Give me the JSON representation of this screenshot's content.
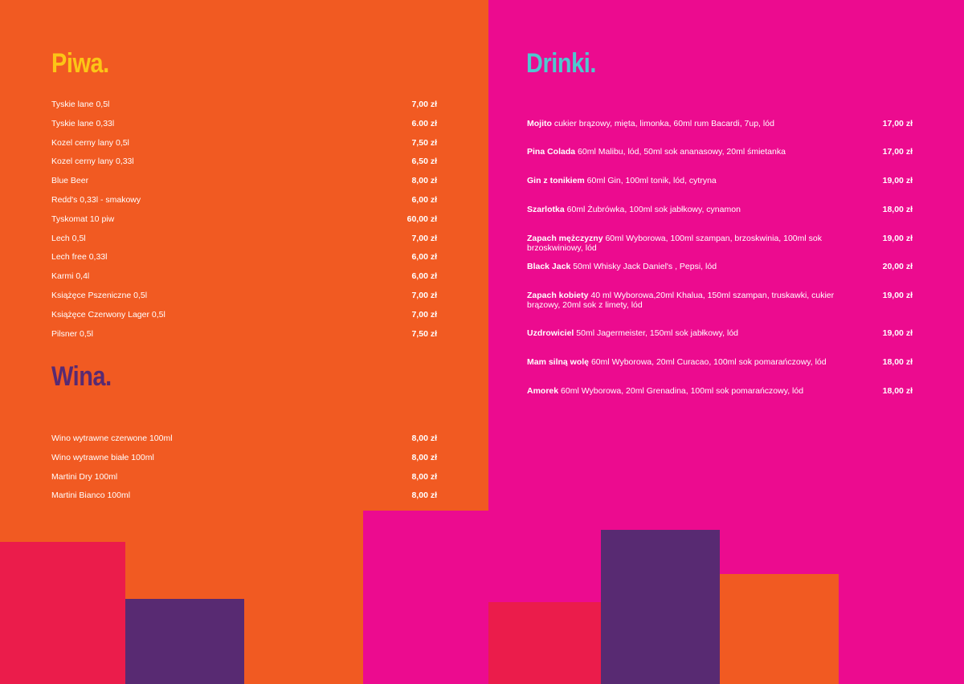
{
  "colors": {
    "orange": "#f15a22",
    "pink": "#ec0b8f",
    "red": "#eb1c4b",
    "purple": "#582a72",
    "yellow": "#fcc516",
    "cyan": "#4fc8cf"
  },
  "beers": {
    "title": "Piwa.",
    "items": [
      {
        "name": "Tyskie lane 0,5l",
        "price": "7,00 zł"
      },
      {
        "name": "Tyskie lane 0,33l",
        "price": "6.00 zł"
      },
      {
        "name": "Kozel cerny lany 0,5l",
        "price": "7,50 zł"
      },
      {
        "name": "Kozel cerny lany 0,33l",
        "price": "6,50 zł"
      },
      {
        "name": "Blue Beer",
        "price": "8,00 zł"
      },
      {
        "name": "Redd's 0,33l - smakowy",
        "price": "6,00 zł"
      },
      {
        "name": "Tyskomat 10 piw",
        "price": "60,00 zł"
      },
      {
        "name": "Lech 0,5l",
        "price": "7,00 zł"
      },
      {
        "name": "Lech free 0,33l",
        "price": "6,00 zł"
      },
      {
        "name": "Karmi 0,4l",
        "price": "6,00 zł"
      },
      {
        "name": "Książęce Pszeniczne 0,5l",
        "price": "7,00 zł"
      },
      {
        "name": "Książęce Czerwony Lager 0,5l",
        "price": "7,00 zł"
      },
      {
        "name": "Pilsner 0,5l",
        "price": "7,50 zł"
      }
    ]
  },
  "wines": {
    "title": "Wina.",
    "items": [
      {
        "name": "Wino wytrawne czerwone 100ml",
        "price": "8,00 zł"
      },
      {
        "name": "Wino wytrawne białe 100ml",
        "price": "8,00 zł"
      },
      {
        "name": "Martini Dry 100ml",
        "price": "8,00 zł"
      },
      {
        "name": "Martini Bianco 100ml",
        "price": "8,00 zł"
      }
    ]
  },
  "drinks": {
    "title": "Drinki.",
    "items": [
      {
        "name": "Mojito",
        "desc": " cukier brązowy,  mięta, limonka, 60ml rum Bacardi, 7up, lód",
        "price": "17,00 zł"
      },
      {
        "name": "Pina Colada",
        "desc": " 60ml Malibu, lód, 50ml sok ananasowy, 20ml śmietanka",
        "price": "17,00 zł"
      },
      {
        "name": "Gin z tonikiem",
        "desc": " 60ml Gin, 100ml tonik, lód, cytryna",
        "price": "19,00 zł"
      },
      {
        "name": "Szarlotka",
        "desc": " 60ml Żubrówka, 100ml sok jabłkowy, cynamon",
        "price": "18,00 zł"
      },
      {
        "name": "Zapach mężczyzny",
        "desc": " 60ml Wyborowa, 100ml szampan, brzoskwinia, 100ml sok brzoskwiniowy, lód",
        "price": "19,00 zł"
      },
      {
        "name": "Black Jack",
        "desc": " 50ml Whisky Jack Daniel's , Pepsi, lód",
        "price": "20,00 zł"
      },
      {
        "name": "Zapach kobiety",
        "desc": " 40 ml Wyborowa,20ml Khalua, 150ml szampan, truskawki, cukier brązowy, 20ml sok z limety, lód",
        "price": "19,00 zł"
      },
      {
        "name": "Uzdrowiciel",
        "desc": " 50ml Jagermeister, 150ml sok jabłkowy, lód",
        "price": "19,00 zł"
      },
      {
        "name": "Mam silną wolę",
        "desc": " 60ml Wyborowa, 20ml Curacao, 100ml sok pomarańczowy, lód",
        "price": "18,00 zł"
      },
      {
        "name": "Amorek",
        "desc": " 60ml Wyborowa, 20ml Grenadina, 100ml sok pomarańczowy, lód",
        "price": "18,00 zł"
      }
    ]
  }
}
